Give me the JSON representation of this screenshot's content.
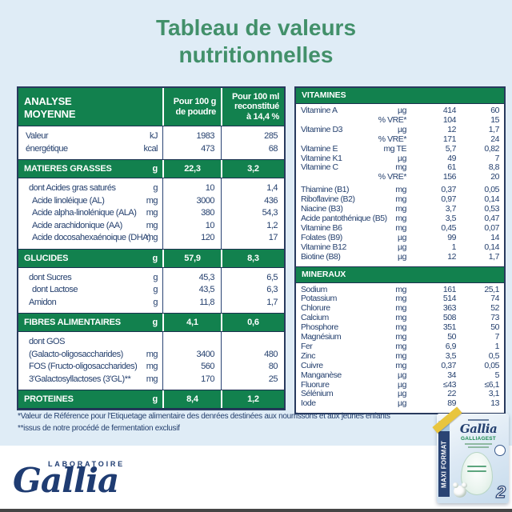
{
  "title": {
    "line1": "Tableau de valeurs",
    "line2": "nutritionnelles"
  },
  "left_table": {
    "header": {
      "col1": [
        "ANALYSE",
        "MOYENNE"
      ],
      "col2": [
        "Pour 100 g",
        "de poudre"
      ],
      "col3": [
        "Pour 100 ml",
        "reconstitué",
        "à 14,4 %"
      ]
    },
    "rows": [
      {
        "type": "item",
        "label": "Valeur",
        "unit": "kJ",
        "per_100g": "1983",
        "per_100ml": "285",
        "indent": 0
      },
      {
        "type": "item",
        "label": "énergétique",
        "unit": "kcal",
        "per_100g": "473",
        "per_100ml": "68",
        "indent": 0
      },
      {
        "type": "section",
        "label": "MATIERES GRASSES",
        "unit": "g",
        "per_100g": "22,3",
        "per_100ml": "3,2"
      },
      {
        "type": "item",
        "label": "dont Acides gras saturés",
        "unit": "g",
        "per_100g": "10",
        "per_100ml": "1,4",
        "indent": 1
      },
      {
        "type": "item",
        "label": "Acide linoléique (AL)",
        "unit": "mg",
        "per_100g": "3000",
        "per_100ml": "436",
        "indent": 2
      },
      {
        "type": "item",
        "label": "Acide alpha-linolénique (ALA)",
        "unit": "mg",
        "per_100g": "380",
        "per_100ml": "54,3",
        "indent": 2
      },
      {
        "type": "item",
        "label": "Acide arachidonique (AA)",
        "unit": "mg",
        "per_100g": "10",
        "per_100ml": "1,2",
        "indent": 2
      },
      {
        "type": "item",
        "label": "Acide docosahexaénoique (DHA)",
        "unit": "mg",
        "per_100g": "120",
        "per_100ml": "17",
        "indent": 2
      },
      {
        "type": "section",
        "label": "GLUCIDES",
        "unit": "g",
        "per_100g": "57,9",
        "per_100ml": "8,3"
      },
      {
        "type": "item",
        "label": "dont Sucres",
        "unit": "g",
        "per_100g": "45,3",
        "per_100ml": "6,5",
        "indent": 1
      },
      {
        "type": "item",
        "label": "dont Lactose",
        "unit": "g",
        "per_100g": "43,5",
        "per_100ml": "6,3",
        "indent": 2
      },
      {
        "type": "item",
        "label": "Amidon",
        "unit": "g",
        "per_100g": "11,8",
        "per_100ml": "1,7",
        "indent": 1
      },
      {
        "type": "section",
        "label": "FIBRES ALIMENTAIRES",
        "unit": "g",
        "per_100g": "4,1",
        "per_100ml": "0,6"
      },
      {
        "type": "item",
        "label": "dont GOS",
        "unit": "",
        "per_100g": "",
        "per_100ml": "",
        "indent": 1
      },
      {
        "type": "item",
        "label": "(Galacto-oligosaccharides)",
        "unit": "mg",
        "per_100g": "3400",
        "per_100ml": "480",
        "indent": 1
      },
      {
        "type": "item",
        "label": "FOS (Fructo-oligosaccharides)",
        "unit": "mg",
        "per_100g": "560",
        "per_100ml": "80",
        "indent": 1
      },
      {
        "type": "item",
        "label": "3'Galactosyllactoses (3'GL)**",
        "unit": "mg",
        "per_100g": "170",
        "per_100ml": "25",
        "indent": 1
      },
      {
        "type": "section",
        "label": "PROTEINES",
        "unit": "g",
        "per_100g": "8,4",
        "per_100ml": "1,2"
      }
    ]
  },
  "right_table": {
    "vitamins_title": "VITAMINES",
    "vitamins_rows": [
      {
        "label": "Vitamine A",
        "unit": "µg",
        "per_100g": "414",
        "per_100ml": "60"
      },
      {
        "label": "",
        "unit": "% VRE*",
        "per_100g": "104",
        "per_100ml": "15"
      },
      {
        "label": "Vitamine D3",
        "unit": "µg",
        "per_100g": "12",
        "per_100ml": "1,7"
      },
      {
        "label": "",
        "unit": "% VRE*",
        "per_100g": "171",
        "per_100ml": "24"
      },
      {
        "label": "Vitamine E",
        "unit": "mg TE",
        "per_100g": "5,7",
        "per_100ml": "0,82"
      },
      {
        "label": "Vitamine K1",
        "unit": "µg",
        "per_100g": "49",
        "per_100ml": "7"
      },
      {
        "label": "Vitamine C",
        "unit": "mg",
        "per_100g": "61",
        "per_100ml": "8,8"
      },
      {
        "label": "",
        "unit": "% VRE*",
        "per_100g": "156",
        "per_100ml": "20",
        "gap_after": true
      },
      {
        "label": "Thiamine (B1)",
        "unit": "mg",
        "per_100g": "0,37",
        "per_100ml": "0,05"
      },
      {
        "label": "Riboflavine (B2)",
        "unit": "mg",
        "per_100g": "0,97",
        "per_100ml": "0,14"
      },
      {
        "label": "Niacine (B3)",
        "unit": "mg",
        "per_100g": "3,7",
        "per_100ml": "0,53"
      },
      {
        "label": "Acide pantothénique (B5)",
        "unit": "mg",
        "per_100g": "3,5",
        "per_100ml": "0,47"
      },
      {
        "label": "Vitamine B6",
        "unit": "mg",
        "per_100g": "0,45",
        "per_100ml": "0,07"
      },
      {
        "label": "Folates (B9)",
        "unit": "µg",
        "per_100g": "99",
        "per_100ml": "14"
      },
      {
        "label": "Vitamine B12",
        "unit": "µg",
        "per_100g": "1",
        "per_100ml": "0,14"
      },
      {
        "label": "Biotine (B8)",
        "unit": "µg",
        "per_100g": "12",
        "per_100ml": "1,7"
      }
    ],
    "minerals_title": "MINERAUX",
    "minerals_rows": [
      {
        "label": "Sodium",
        "unit": "mg",
        "per_100g": "161",
        "per_100ml": "25,1"
      },
      {
        "label": "Potassium",
        "unit": "mg",
        "per_100g": "514",
        "per_100ml": "74"
      },
      {
        "label": "Chlorure",
        "unit": "mg",
        "per_100g": "363",
        "per_100ml": "52"
      },
      {
        "label": "Calcium",
        "unit": "mg",
        "per_100g": "508",
        "per_100ml": "73"
      },
      {
        "label": "Phosphore",
        "unit": "mg",
        "per_100g": "351",
        "per_100ml": "50"
      },
      {
        "label": "Magnésium",
        "unit": "mg",
        "per_100g": "50",
        "per_100ml": "7"
      },
      {
        "label": "Fer",
        "unit": "mg",
        "per_100g": "6,9",
        "per_100ml": "1"
      },
      {
        "label": "Zinc",
        "unit": "mg",
        "per_100g": "3,5",
        "per_100ml": "0,5"
      },
      {
        "label": "Cuivre",
        "unit": "mg",
        "per_100g": "0,37",
        "per_100ml": "0,05"
      },
      {
        "label": "Manganèse",
        "unit": "µg",
        "per_100g": "34",
        "per_100ml": "5"
      },
      {
        "label": "Fluorure",
        "unit": "µg",
        "per_100g": "≤43",
        "per_100ml": "≤6,1"
      },
      {
        "label": "Sélénium",
        "unit": "µg",
        "per_100g": "22",
        "per_100ml": "3,1"
      },
      {
        "label": "Iode",
        "unit": "µg",
        "per_100g": "89",
        "per_100ml": "13"
      }
    ]
  },
  "footnotes": {
    "line1": "*Valeur de Référence pour l'Etiquetage alimentaire des denrées destinées aux nourrissons et aux jeunes enfants",
    "line2": "**issus de notre procédé de fermentation exclusif"
  },
  "brand": {
    "laboratoire": "LABORATOIRE",
    "name": "Gallia"
  },
  "product_pack": {
    "brand": "Gallia",
    "range": "GALLIAGEST",
    "side_label": "MAXI FORMAT",
    "stage": "2"
  },
  "colors": {
    "accent_green": "#12814e",
    "title_green": "#42906a",
    "navy_text": "#25406e",
    "background": "#dfecf6",
    "pack_yellow": "#e8c53e"
  }
}
